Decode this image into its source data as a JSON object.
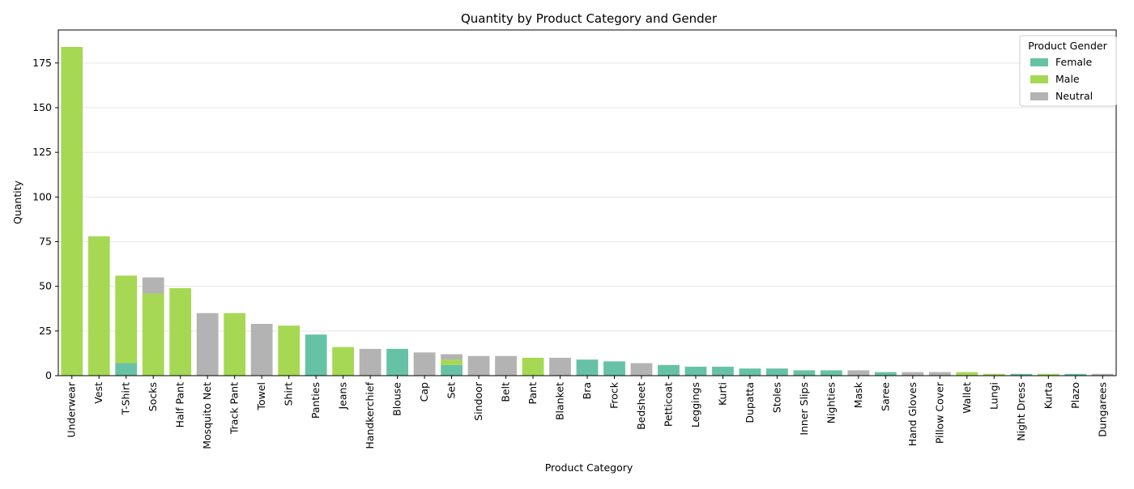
{
  "chart_data": {
    "type": "bar",
    "stacked": true,
    "title": "Quantity by Product Category and Gender",
    "x_label": "Product Category",
    "y_label": "Quantity",
    "legend_title": "Product Gender",
    "legend_position": "upper right",
    "grid": true,
    "categories": [
      "Underwear",
      "Vest",
      "T-Shirt",
      "Socks",
      "Half Pant",
      "Mosquito Net",
      "Track Pant",
      "Towel",
      "Shirt",
      "Panties",
      "Jeans",
      "Handkerchief",
      "Blouse",
      "Cap",
      "Set",
      "Sindoor",
      "Belt",
      "Pant",
      "Blanket",
      "Bra",
      "Frock",
      "Bedsheet",
      "Petticoat",
      "Leggings",
      "Kurti",
      "Dupatta",
      "Stoles",
      "Inner Slips",
      "Nighties",
      "Mask",
      "Saree",
      "Hand Gloves",
      "Pillow Cover",
      "Wallet",
      "Lungi",
      "Night Dress",
      "Kurta",
      "Plazo",
      "Dungarees"
    ],
    "series": [
      {
        "name": "Female",
        "color": "#66c2a5",
        "values": [
          null,
          null,
          7,
          null,
          null,
          null,
          null,
          null,
          null,
          23,
          null,
          null,
          15,
          null,
          6,
          null,
          null,
          null,
          null,
          9,
          8,
          null,
          6,
          5,
          5,
          4,
          4,
          3,
          3,
          null,
          2,
          null,
          null,
          null,
          null,
          1,
          null,
          1,
          null
        ]
      },
      {
        "name": "Male",
        "color": "#a6d854",
        "values": [
          184,
          78,
          49,
          46,
          49,
          null,
          35,
          null,
          28,
          null,
          16,
          null,
          null,
          null,
          3,
          null,
          null,
          10,
          null,
          null,
          null,
          null,
          null,
          null,
          null,
          null,
          null,
          null,
          null,
          null,
          null,
          null,
          null,
          2,
          1,
          null,
          1,
          null,
          null
        ]
      },
      {
        "name": "Neutral",
        "color": "#b3b3b3",
        "values": [
          null,
          null,
          null,
          9,
          null,
          35,
          null,
          29,
          null,
          null,
          null,
          15,
          null,
          13,
          3,
          11,
          11,
          null,
          10,
          null,
          null,
          7,
          null,
          null,
          null,
          null,
          null,
          null,
          null,
          3,
          null,
          2,
          2,
          null,
          null,
          null,
          null,
          null,
          1
        ]
      }
    ],
    "ylim": [
      0,
      193.5
    ],
    "yticks": [
      0,
      25,
      50,
      75,
      100,
      125,
      150,
      175
    ]
  }
}
